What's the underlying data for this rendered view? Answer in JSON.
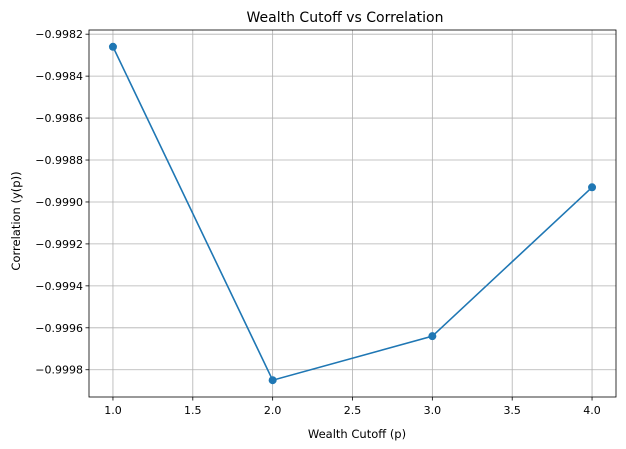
{
  "chart_data": {
    "type": "line",
    "title": "Wealth Cutoff vs Correlation",
    "xlabel": "Wealth Cutoff (p)",
    "ylabel": "Correlation (y(p))",
    "x": [
      1.0,
      2.0,
      3.0,
      4.0
    ],
    "series": [
      {
        "values": [
          -0.99826,
          -0.99985,
          -0.99964,
          -0.99893
        ],
        "color": "#1f77b4",
        "marker": "circle"
      }
    ],
    "xlim": [
      0.85,
      4.15
    ],
    "ylim": [
      -0.99993,
      -0.99818
    ],
    "xticks": [
      1.0,
      1.5,
      2.0,
      2.5,
      3.0,
      3.5,
      4.0
    ],
    "xtick_labels": [
      "1.0",
      "1.5",
      "2.0",
      "2.5",
      "3.0",
      "3.5",
      "4.0"
    ],
    "yticks": [
      -0.9998,
      -0.9996,
      -0.9994,
      -0.9992,
      -0.999,
      -0.9988,
      -0.9986,
      -0.9984,
      -0.9982
    ],
    "ytick_labels": [
      "−0.9998",
      "−0.9996",
      "−0.9994",
      "−0.9992",
      "−0.9990",
      "−0.9988",
      "−0.9986",
      "−0.9984",
      "−0.9982"
    ],
    "grid": true
  }
}
